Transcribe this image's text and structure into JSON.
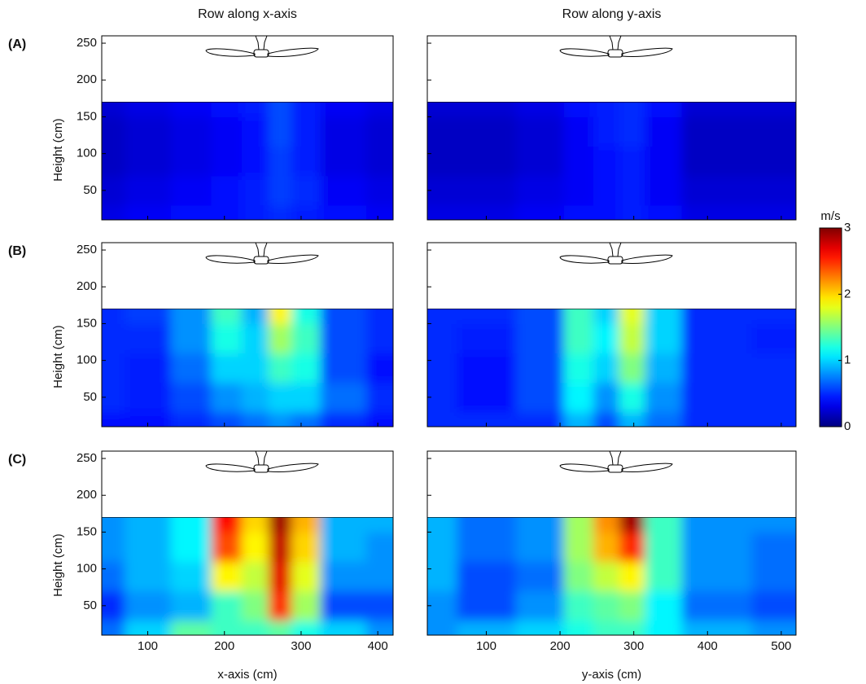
{
  "chart_data": [
    {
      "type": "contour",
      "label": "(A)",
      "title": "Row along x-axis",
      "ylabel": "Height (cm)",
      "x": [
        40,
        100,
        160,
        205,
        240,
        275,
        300,
        350,
        420
      ],
      "y": [
        10,
        50,
        90,
        130,
        170
      ],
      "z": [
        [
          0.3,
          0.35,
          0.4,
          0.4,
          0.45,
          0.5,
          0.45,
          0.4,
          0.35
        ],
        [
          0.25,
          0.3,
          0.35,
          0.4,
          0.45,
          0.55,
          0.5,
          0.35,
          0.3
        ],
        [
          0.2,
          0.25,
          0.3,
          0.35,
          0.4,
          0.55,
          0.45,
          0.3,
          0.25
        ],
        [
          0.2,
          0.25,
          0.3,
          0.35,
          0.4,
          0.6,
          0.45,
          0.3,
          0.25
        ],
        [
          0.25,
          0.3,
          0.35,
          0.4,
          0.45,
          0.6,
          0.45,
          0.35,
          0.3
        ]
      ],
      "xlim": [
        40,
        420
      ],
      "ylim": [
        10,
        260
      ],
      "xticks": [
        100,
        200,
        300,
        400
      ],
      "yticks": [
        50,
        100,
        150,
        200,
        250
      ],
      "xticklabels": false,
      "yticklabels": true,
      "colormap": "jet",
      "clim": [
        0,
        3
      ]
    },
    {
      "type": "contour",
      "title": "Row along y-axis",
      "x": [
        20,
        100,
        180,
        230,
        260,
        300,
        330,
        400,
        520
      ],
      "y": [
        10,
        50,
        90,
        130,
        170
      ],
      "z": [
        [
          0.3,
          0.3,
          0.35,
          0.4,
          0.4,
          0.45,
          0.4,
          0.3,
          0.3
        ],
        [
          0.25,
          0.25,
          0.3,
          0.35,
          0.4,
          0.45,
          0.35,
          0.25,
          0.25
        ],
        [
          0.2,
          0.2,
          0.25,
          0.35,
          0.4,
          0.45,
          0.35,
          0.2,
          0.2
        ],
        [
          0.2,
          0.2,
          0.25,
          0.35,
          0.45,
          0.5,
          0.35,
          0.2,
          0.2
        ],
        [
          0.25,
          0.25,
          0.3,
          0.4,
          0.45,
          0.5,
          0.4,
          0.25,
          0.25
        ]
      ],
      "xlim": [
        20,
        520
      ],
      "ylim": [
        10,
        260
      ],
      "xticks": [
        100,
        200,
        300,
        400,
        500
      ],
      "yticks": [
        50,
        100,
        150,
        200,
        250
      ],
      "xticklabels": false,
      "yticklabels": false,
      "colormap": "jet",
      "clim": [
        0,
        3
      ]
    },
    {
      "type": "contour",
      "label": "(B)",
      "ylabel": "Height (cm)",
      "x": [
        40,
        100,
        160,
        205,
        240,
        275,
        300,
        350,
        420
      ],
      "y": [
        10,
        50,
        90,
        130,
        170
      ],
      "z": [
        [
          0.4,
          0.4,
          0.5,
          0.6,
          0.7,
          0.8,
          0.7,
          0.5,
          0.4
        ],
        [
          0.5,
          0.45,
          0.6,
          0.8,
          0.9,
          1.0,
          1.0,
          0.7,
          0.5
        ],
        [
          0.5,
          0.45,
          0.7,
          1.0,
          1.0,
          1.3,
          1.2,
          0.6,
          0.4
        ],
        [
          0.5,
          0.5,
          0.8,
          1.2,
          1.0,
          1.6,
          1.3,
          0.6,
          0.5
        ],
        [
          0.5,
          0.55,
          0.8,
          1.3,
          0.9,
          1.9,
          1.2,
          0.6,
          0.5
        ]
      ],
      "xlim": [
        40,
        420
      ],
      "ylim": [
        10,
        260
      ],
      "xticks": [
        100,
        200,
        300,
        400
      ],
      "yticks": [
        50,
        100,
        150,
        200,
        250
      ],
      "xticklabels": false,
      "yticklabels": true,
      "colormap": "jet",
      "clim": [
        0,
        3
      ]
    },
    {
      "type": "contour",
      "x": [
        20,
        100,
        180,
        230,
        260,
        300,
        330,
        400,
        520
      ],
      "y": [
        10,
        50,
        90,
        130,
        170
      ],
      "z": [
        [
          0.5,
          0.5,
          0.5,
          0.9,
          0.6,
          0.9,
          0.7,
          0.5,
          0.5
        ],
        [
          0.5,
          0.4,
          0.6,
          1.1,
          0.8,
          1.2,
          0.8,
          0.5,
          0.5
        ],
        [
          0.5,
          0.4,
          0.6,
          1.2,
          1.0,
          1.5,
          0.9,
          0.5,
          0.5
        ],
        [
          0.5,
          0.45,
          0.6,
          1.3,
          1.1,
          1.7,
          1.0,
          0.5,
          0.45
        ],
        [
          0.5,
          0.5,
          0.6,
          1.3,
          1.0,
          1.8,
          1.0,
          0.5,
          0.5
        ]
      ],
      "xlim": [
        20,
        520
      ],
      "ylim": [
        10,
        260
      ],
      "xticks": [
        100,
        200,
        300,
        400,
        500
      ],
      "yticks": [
        50,
        100,
        150,
        200,
        250
      ],
      "xticklabels": false,
      "yticklabels": false,
      "colormap": "jet",
      "clim": [
        0,
        3
      ]
    },
    {
      "type": "contour",
      "label": "(C)",
      "ylabel": "Height (cm)",
      "xlabel": "x-axis (cm)",
      "x": [
        40,
        100,
        160,
        205,
        240,
        275,
        300,
        350,
        420
      ],
      "y": [
        10,
        50,
        90,
        130,
        170
      ],
      "z": [
        [
          0.7,
          1.0,
          1.4,
          1.3,
          1.3,
          1.4,
          1.2,
          1.0,
          0.8
        ],
        [
          0.5,
          0.8,
          0.9,
          1.3,
          1.5,
          2.5,
          1.6,
          0.6,
          0.6
        ],
        [
          0.7,
          0.9,
          1.0,
          1.9,
          1.7,
          2.7,
          1.8,
          0.8,
          0.8
        ],
        [
          0.8,
          0.9,
          1.1,
          2.4,
          1.9,
          2.8,
          2.0,
          0.9,
          0.8
        ],
        [
          0.8,
          0.9,
          1.1,
          2.6,
          2.0,
          2.9,
          2.1,
          0.9,
          0.9
        ]
      ],
      "xlim": [
        40,
        420
      ],
      "ylim": [
        10,
        260
      ],
      "xticks": [
        100,
        200,
        300,
        400
      ],
      "yticks": [
        50,
        100,
        150,
        200,
        250
      ],
      "xticklabels": true,
      "yticklabels": true,
      "colormap": "jet",
      "clim": [
        0,
        3
      ]
    },
    {
      "type": "contour",
      "xlabel": "y-axis (cm)",
      "x": [
        20,
        100,
        180,
        230,
        260,
        300,
        330,
        400,
        520
      ],
      "y": [
        10,
        50,
        90,
        130,
        170
      ],
      "z": [
        [
          0.8,
          0.9,
          1.0,
          1.2,
          1.3,
          1.3,
          1.1,
          0.9,
          0.8
        ],
        [
          0.8,
          0.6,
          0.8,
          1.3,
          1.4,
          1.5,
          1.1,
          0.7,
          0.6
        ],
        [
          0.9,
          0.6,
          0.7,
          1.5,
          1.7,
          1.9,
          1.3,
          0.8,
          0.7
        ],
        [
          0.9,
          0.7,
          0.8,
          1.6,
          2.1,
          2.5,
          1.3,
          0.8,
          0.7
        ],
        [
          0.9,
          0.7,
          0.8,
          1.6,
          2.2,
          2.9,
          1.3,
          0.8,
          0.8
        ]
      ],
      "xlim": [
        20,
        520
      ],
      "ylim": [
        10,
        260
      ],
      "xticks": [
        100,
        200,
        300,
        400,
        500
      ],
      "yticks": [
        50,
        100,
        150,
        200,
        250
      ],
      "xticklabels": true,
      "yticklabels": false,
      "colormap": "jet",
      "clim": [
        0,
        3
      ]
    },
    {
      "type": "colorbar",
      "title": "m/s",
      "clim": [
        0,
        3
      ],
      "ticks": [
        0,
        1,
        2,
        3
      ],
      "colormap": "jet"
    }
  ]
}
